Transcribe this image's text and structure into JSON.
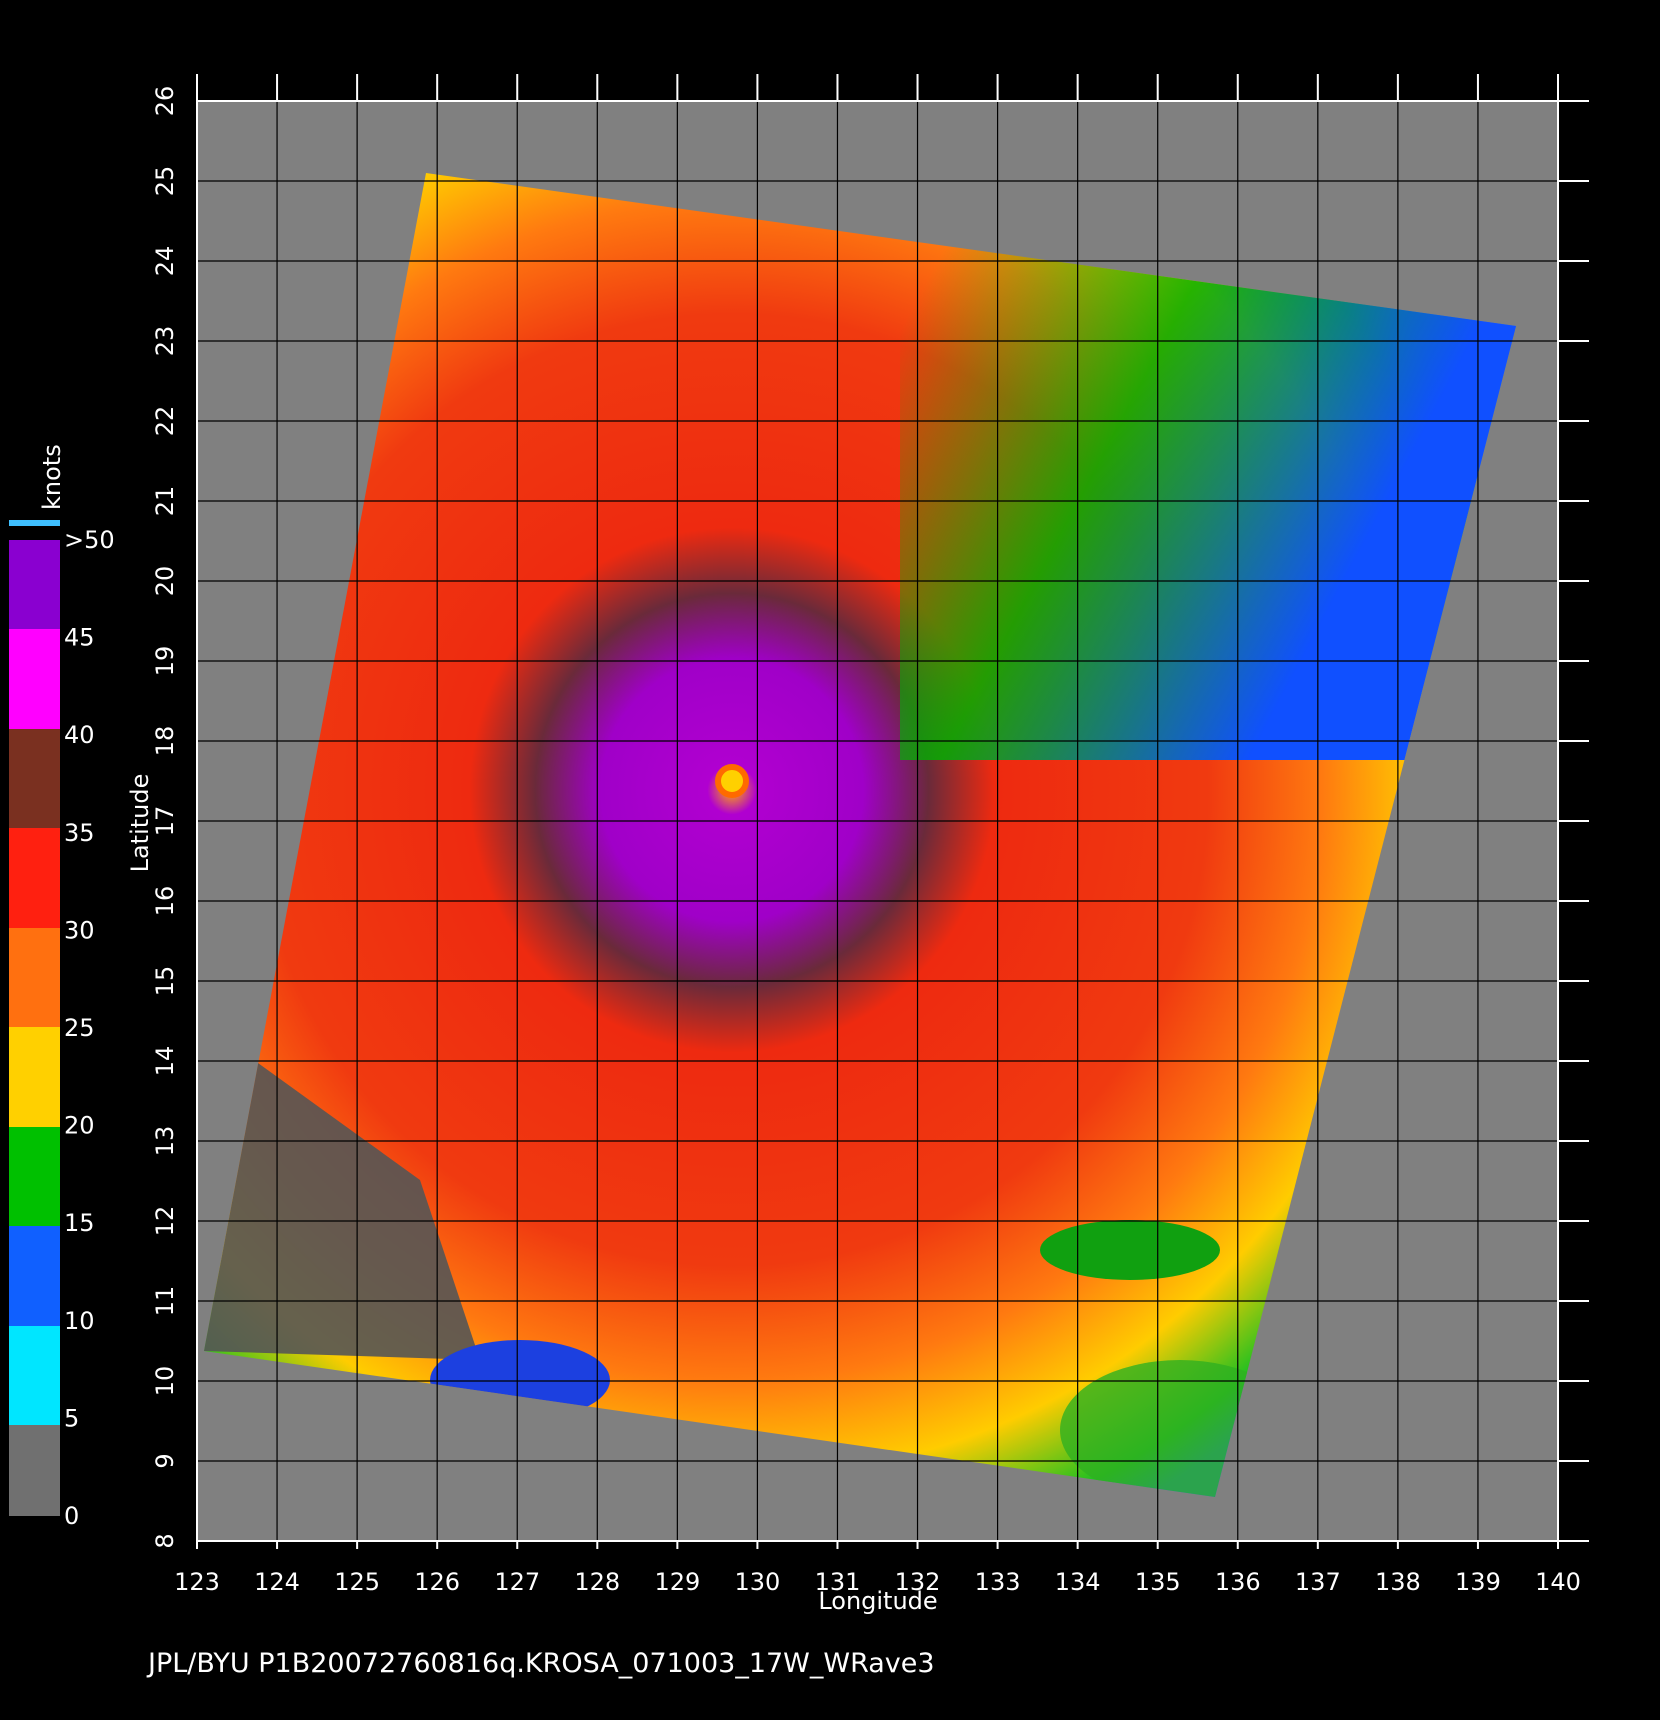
{
  "map": {
    "x_axis": {
      "label": "Longitude",
      "ticks": [
        123,
        124,
        125,
        126,
        127,
        128,
        129,
        130,
        131,
        132,
        133,
        134,
        135,
        136,
        137,
        138,
        139,
        140
      ]
    },
    "y_axis": {
      "label": "Latitude",
      "ticks": [
        8,
        9,
        10,
        11,
        12,
        13,
        14,
        15,
        16,
        17,
        18,
        19,
        20,
        21,
        22,
        23,
        24,
        25,
        26
      ]
    },
    "colorbar": {
      "title": "knots",
      "ticks": [
        0,
        5,
        10,
        15,
        20,
        25,
        30,
        35,
        40,
        45,
        {
          "value": 50,
          "label": ">50"
        }
      ]
    },
    "footer": "JPL/BYU  P1B20072760816q.KROSA_071003_17W_WRave3"
  }
}
